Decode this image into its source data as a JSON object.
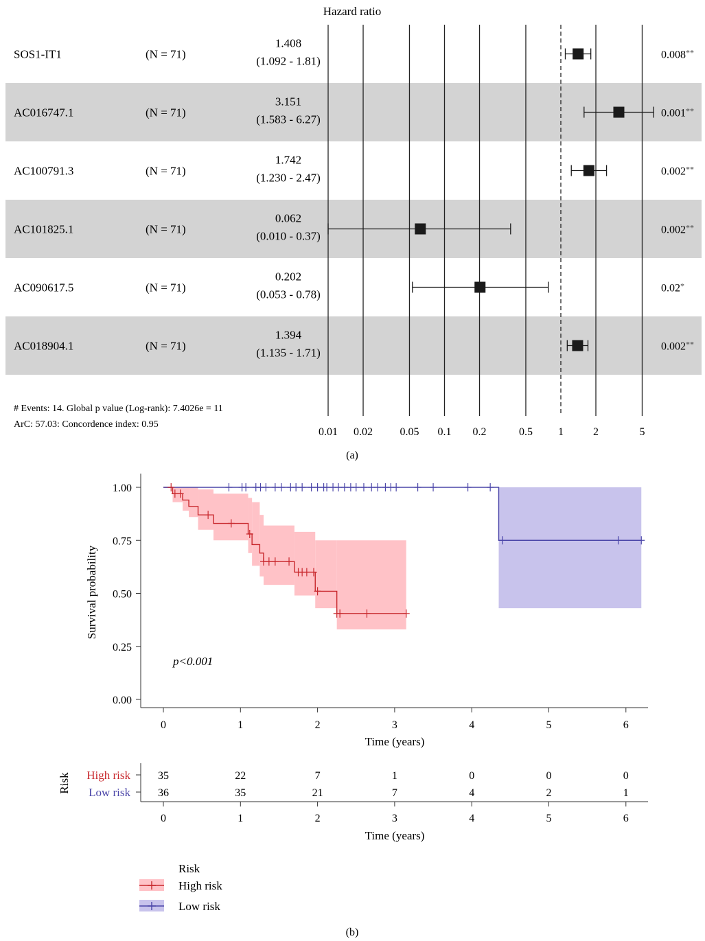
{
  "figure": {
    "label_a": "(a)",
    "label_b": "(b)"
  },
  "forest": {
    "title": "Hazard ratio",
    "ticks": [
      0.01,
      0.02,
      0.05,
      0.1,
      0.2,
      0.5,
      1,
      2,
      5
    ],
    "tick_labels": [
      "0.01",
      "0.02",
      "0.05",
      "0.1",
      "0.2",
      "0.5",
      "1",
      "2",
      "5"
    ],
    "rows": [
      {
        "name": "SOS1-IT1",
        "n_label": "(N = 71)",
        "hr_label": "1.408",
        "ci_label": "(1.092 - 1.81)",
        "p_label": "0.008",
        "stars": "**"
      },
      {
        "name": "AC016747.1",
        "n_label": "(N = 71)",
        "hr_label": "3.151",
        "ci_label": "(1.583 - 6.27)",
        "p_label": "0.001",
        "stars": "**"
      },
      {
        "name": "AC100791.3",
        "n_label": "(N = 71)",
        "hr_label": "1.742",
        "ci_label": "(1.230 - 2.47)",
        "p_label": "0.002",
        "stars": "**"
      },
      {
        "name": "AC101825.1",
        "n_label": "(N = 71)",
        "hr_label": "0.062",
        "ci_label": "(0.010 - 0.37)",
        "p_label": "0.002",
        "stars": "**"
      },
      {
        "name": "AC090617.5",
        "n_label": "(N = 71)",
        "hr_label": "0.202",
        "ci_label": "(0.053 - 0.78)",
        "p_label": "0.02",
        "stars": "*"
      },
      {
        "name": "AC018904.1",
        "n_label": "(N = 71)",
        "hr_label": "1.394",
        "ci_label": "(1.135 - 1.71)",
        "p_label": "0.002",
        "stars": "**"
      }
    ],
    "footnote_line1": "# Events: 14. Global p value (Log-rank): 7.4026e = 11",
    "footnote_line2": "ArC: 57.03: Concordence index: 0.95",
    "colors": {
      "band": "#d3d3d3",
      "marker": "#1a1a1a"
    }
  },
  "km": {
    "ylabel": "Survival probability",
    "xlabel": "Time (years)",
    "pvalue_label": "p<0.001",
    "yticks": [
      "0.00",
      "0.25",
      "0.50",
      "0.75",
      "1.00"
    ],
    "xticks": [
      "0",
      "1",
      "2",
      "3",
      "4",
      "5",
      "6"
    ],
    "colors": {
      "high": "#c8282d",
      "low": "#4a45a8",
      "high_band": "#ffc2c7",
      "low_band": "#c8c3ec"
    }
  },
  "risk_table": {
    "title": "Risk",
    "xlabel": "Time (years)",
    "xticks": [
      "0",
      "1",
      "2",
      "3",
      "4",
      "5",
      "6"
    ],
    "groups": [
      {
        "name": "High risk",
        "counts": [
          "35",
          "22",
          "7",
          "1",
          "0",
          "0",
          "0"
        ]
      },
      {
        "name": "Low risk",
        "counts": [
          "36",
          "35",
          "21",
          "7",
          "4",
          "2",
          "1"
        ]
      }
    ]
  },
  "legend": {
    "title": "Risk",
    "items": [
      "High risk",
      "Low risk"
    ]
  },
  "chart_data": [
    {
      "type": "forest",
      "title": "Hazard ratio",
      "x_scale": "log",
      "x_ticks": [
        0.01,
        0.02,
        0.05,
        0.1,
        0.2,
        0.5,
        1,
        2,
        5
      ],
      "reference_line": 1,
      "rows": [
        {
          "name": "SOS1-IT1",
          "n": 71,
          "hr": 1.408,
          "lower": 1.092,
          "upper": 1.81,
          "p": 0.008
        },
        {
          "name": "AC016747.1",
          "n": 71,
          "hr": 3.151,
          "lower": 1.583,
          "upper": 6.27,
          "p": 0.001
        },
        {
          "name": "AC100791.3",
          "n": 71,
          "hr": 1.742,
          "lower": 1.23,
          "upper": 2.47,
          "p": 0.002
        },
        {
          "name": "AC101825.1",
          "n": 71,
          "hr": 0.062,
          "lower": 0.01,
          "upper": 0.37,
          "p": 0.002
        },
        {
          "name": "AC090617.5",
          "n": 71,
          "hr": 0.202,
          "lower": 0.053,
          "upper": 0.78,
          "p": 0.02
        },
        {
          "name": "AC018904.1",
          "n": 71,
          "hr": 1.394,
          "lower": 1.135,
          "upper": 1.71,
          "p": 0.002
        }
      ]
    },
    {
      "type": "line",
      "xlabel": "Time (years)",
      "ylabel": "Survival probability",
      "xlim": [
        0,
        6.3
      ],
      "ylim": [
        0,
        1
      ],
      "series": [
        {
          "name": "High risk",
          "steps": [
            [
              0,
              1.0
            ],
            [
              0.12,
              0.97
            ],
            [
              0.25,
              0.94
            ],
            [
              0.33,
              0.91
            ],
            [
              0.45,
              0.87
            ],
            [
              0.65,
              0.83
            ],
            [
              1.1,
              0.78
            ],
            [
              1.15,
              0.73
            ],
            [
              1.25,
              0.69
            ],
            [
              1.3,
              0.65
            ],
            [
              1.7,
              0.6
            ],
            [
              1.97,
              0.51
            ],
            [
              2.25,
              0.405
            ],
            [
              3.15,
              0.405
            ]
          ],
          "ci": [
            [
              0,
              1.0,
              1.0
            ],
            [
              0.12,
              0.93,
              1.0
            ],
            [
              0.25,
              0.89,
              1.0
            ],
            [
              0.33,
              0.86,
              1.0
            ],
            [
              0.45,
              0.8,
              0.99
            ],
            [
              0.65,
              0.75,
              0.97
            ],
            [
              1.1,
              0.69,
              0.95
            ],
            [
              1.15,
              0.63,
              0.93
            ],
            [
              1.25,
              0.58,
              0.87
            ],
            [
              1.3,
              0.54,
              0.82
            ],
            [
              1.7,
              0.49,
              0.79
            ],
            [
              1.97,
              0.43,
              0.75
            ],
            [
              2.25,
              0.33,
              0.75
            ],
            [
              3.15,
              0.22,
              0.75
            ]
          ],
          "censor": [
            0.1,
            0.15,
            0.22,
            0.58,
            0.88,
            1.12,
            1.3,
            1.37,
            1.45,
            1.63,
            1.75,
            1.8,
            1.86,
            1.95,
            2.0,
            2.25,
            2.29,
            2.64,
            3.15
          ]
        },
        {
          "name": "Low risk",
          "steps": [
            [
              0,
              1.0
            ],
            [
              4.35,
              0.75
            ],
            [
              6.2,
              0.75
            ]
          ],
          "ci": [
            [
              0,
              1.0,
              1.0
            ],
            [
              4.35,
              0.43,
              1.0
            ],
            [
              6.2,
              0.43,
              1.0
            ]
          ],
          "censor": [
            0.85,
            1.02,
            1.07,
            1.2,
            1.26,
            1.33,
            1.45,
            1.53,
            1.65,
            1.72,
            1.8,
            1.92,
            2.0,
            2.08,
            2.12,
            2.2,
            2.27,
            2.35,
            2.43,
            2.5,
            2.6,
            2.7,
            2.78,
            2.88,
            2.95,
            3.02,
            3.3,
            3.5,
            3.95,
            4.24,
            4.4,
            5.9,
            6.2
          ]
        }
      ]
    }
  ]
}
